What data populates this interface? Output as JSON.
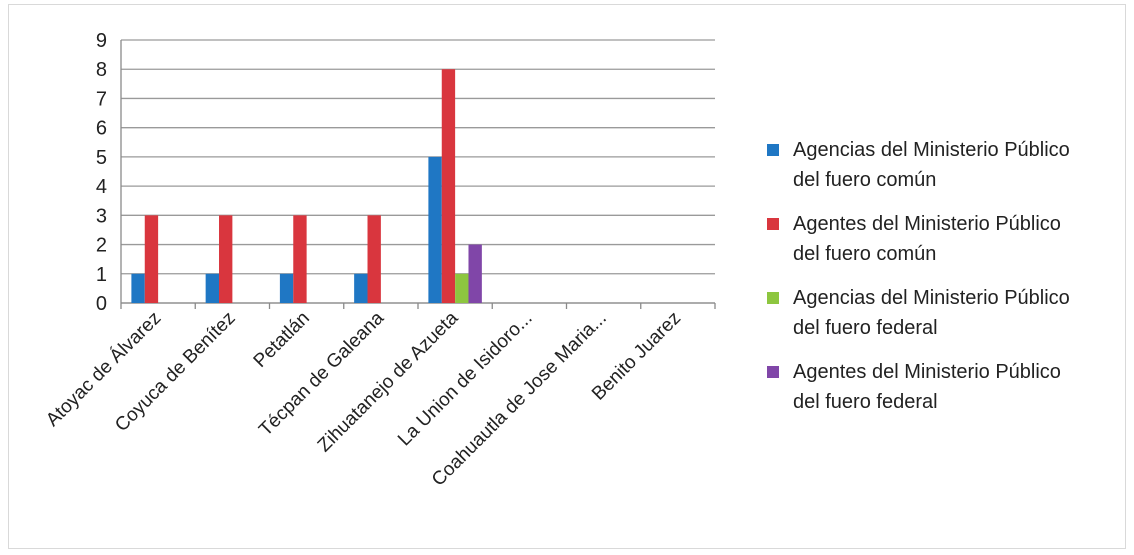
{
  "chart_data": {
    "type": "bar",
    "title": "",
    "xlabel": "",
    "ylabel": "",
    "ylim": [
      0,
      9
    ],
    "yticks": [
      0,
      1,
      2,
      3,
      4,
      5,
      6,
      7,
      8,
      9
    ],
    "grid": "horizontal",
    "legend_position": "right",
    "categories": [
      "Atoyac de Álvarez",
      "Coyuca de Benítez",
      "Petatlán",
      "Técpan de Galeana",
      "Zihuatanejo de Azueta",
      "La Union de Isidoro...",
      "Coahuautla de Jose Maria...",
      "Benito Juarez"
    ],
    "series": [
      {
        "name": "Agencias del Ministerio Público del fuero común",
        "color": "#1f77c4",
        "values": [
          1,
          1,
          1,
          1,
          5,
          0,
          0,
          0
        ]
      },
      {
        "name": "Agentes del Ministerio Público del fuero común",
        "color": "#d9363e",
        "values": [
          3,
          3,
          3,
          3,
          8,
          0,
          0,
          0
        ]
      },
      {
        "name": "Agencias del Ministerio Público del fuero federal",
        "color": "#8dc63f",
        "values": [
          0,
          0,
          0,
          0,
          1,
          0,
          0,
          0
        ]
      },
      {
        "name": "Agentes del Ministerio Público del fuero federal",
        "color": "#8046a8",
        "values": [
          0,
          0,
          0,
          0,
          2,
          0,
          0,
          0
        ]
      }
    ]
  },
  "legend": {
    "items": [
      {
        "line1": "Agencias del Ministerio Público",
        "line2": "del fuero común",
        "color": "#1f77c4"
      },
      {
        "line1": "Agentes del Ministerio Público",
        "line2": "del fuero común",
        "color": "#d9363e"
      },
      {
        "line1": "Agencias del Ministerio Público",
        "line2": "del fuero federal",
        "color": "#8dc63f"
      },
      {
        "line1": "Agentes del Ministerio Público",
        "line2": "del fuero federal",
        "color": "#8046a8"
      }
    ]
  }
}
